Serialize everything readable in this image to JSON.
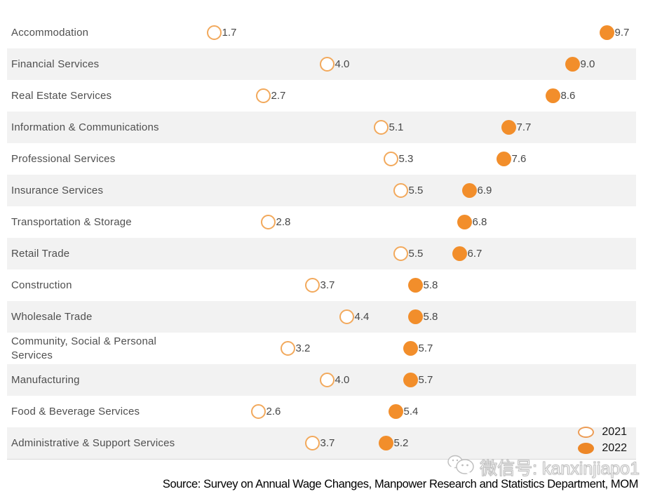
{
  "chart_data": {
    "type": "scatter",
    "subtype": "dot-plot-by-category",
    "categories": [
      "Accommodation",
      "Financial Services",
      "Real Estate Services",
      "Information & Communications",
      "Professional Services",
      "Insurance Services",
      "Transportation & Storage",
      "Retail Trade",
      "Construction",
      "Wholesale Trade",
      "Community, Social & Personal Services",
      "Manufacturing",
      "Food & Beverage Services",
      "Administrative & Support Services"
    ],
    "series": [
      {
        "name": "2021",
        "style": "open",
        "values": [
          1.7,
          4.0,
          2.7,
          5.1,
          5.3,
          5.5,
          2.8,
          5.5,
          3.7,
          4.4,
          3.2,
          4.0,
          2.6,
          3.7
        ]
      },
      {
        "name": "2022",
        "style": "filled",
        "values": [
          9.7,
          9.0,
          8.6,
          7.7,
          7.6,
          6.9,
          6.8,
          6.7,
          5.8,
          5.8,
          5.7,
          5.7,
          5.4,
          5.2
        ]
      }
    ],
    "xlim": [
      0,
      10.5
    ],
    "grid": false,
    "legend_position": "bottom-right",
    "colors": {
      "filled_dot": "#f28e2b",
      "open_dot_stroke": "#f2a95c",
      "alt_row_background": "#f2f2f2",
      "label_text": "#4f4f4f"
    }
  },
  "source": {
    "text": "Source: Survey on Annual Wage Changes, Manpower Research and Statistics Department, MOM"
  },
  "watermark": {
    "icon": "wechat-icon",
    "text": "微信号: kanxinjiapo1"
  }
}
